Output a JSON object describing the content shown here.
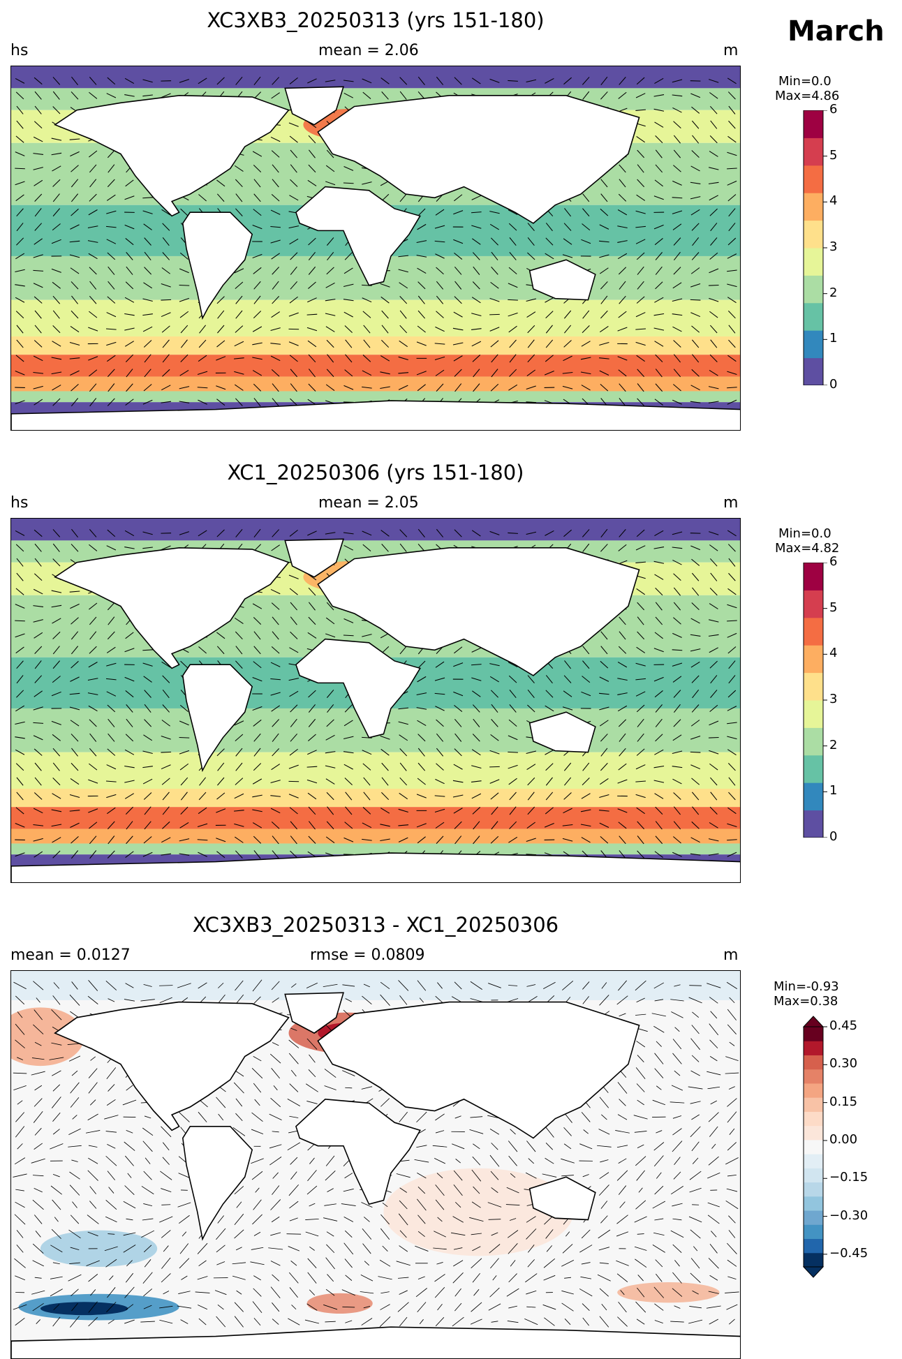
{
  "page": {
    "month": "March"
  },
  "panels": [
    {
      "title": "XC3XB3_20250313 (yrs 151-180)",
      "left": "hs",
      "center": "mean = 2.06",
      "right": "m",
      "stats": {
        "min": "Min=0.0",
        "max": "Max=4.86"
      }
    },
    {
      "title": "XC1_20250306 (yrs 151-180)",
      "left": "hs",
      "center": "mean = 2.05",
      "right": "m",
      "stats": {
        "min": "Min=0.0",
        "max": "Max=4.82"
      }
    },
    {
      "title": "XC3XB3_20250313 - XC1_20250306",
      "left": "mean = 0.0127",
      "center": "rmse = 0.0809",
      "right": "m",
      "stats": {
        "min": "Min=-0.93",
        "max": "Max=0.38"
      }
    }
  ],
  "colorbars": {
    "hs": {
      "ticks": [
        "0",
        "1",
        "2",
        "3",
        "4",
        "5",
        "6"
      ],
      "colors": [
        "#5e4fa2",
        "#3288bd",
        "#66c2a5",
        "#abdda4",
        "#e6f598",
        "#fee08b",
        "#fdae61",
        "#f46d43",
        "#d53e4f",
        "#9e0142"
      ]
    },
    "diff": {
      "ticks": [
        "−0.45",
        "−0.30",
        "−0.15",
        "0.00",
        "0.15",
        "0.30",
        "0.45"
      ],
      "colors": [
        "#053061",
        "#2166ac",
        "#4393c3",
        "#6fa7cf",
        "#92c5de",
        "#b8d7e8",
        "#d1e5f0",
        "#e2eef5",
        "#f7f7f7",
        "#fbe6da",
        "#fddbc7",
        "#f8c2a6",
        "#f4a582",
        "#e58267",
        "#d6604d",
        "#b2182b",
        "#67001f"
      ]
    }
  }
}
